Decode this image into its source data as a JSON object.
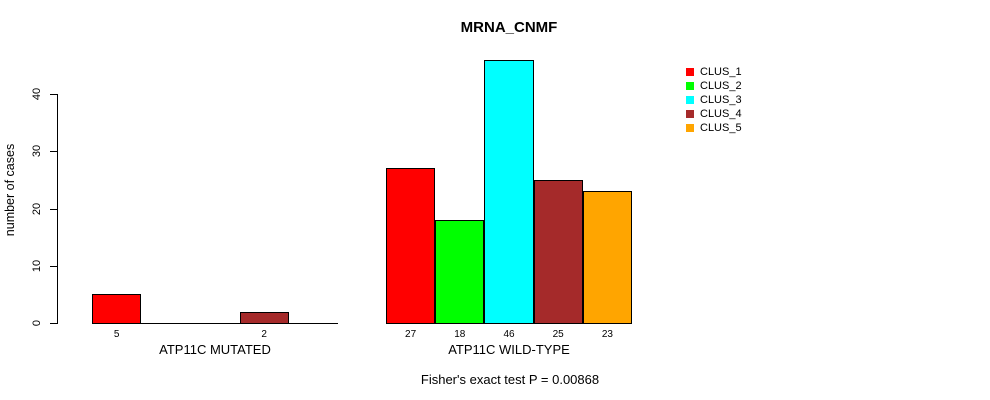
{
  "chart_data": {
    "type": "bar",
    "title": "MRNA_CNMF",
    "ylabel": "number of cases",
    "ylim": [
      0,
      46
    ],
    "yticks": [
      0,
      10,
      20,
      30,
      40
    ],
    "grid": false,
    "legend_position": "right",
    "legend": [
      {
        "name": "CLUS_1",
        "color": "#ff0000"
      },
      {
        "name": "CLUS_2",
        "color": "#00ff00"
      },
      {
        "name": "CLUS_3",
        "color": "#00ffff"
      },
      {
        "name": "CLUS_4",
        "color": "#a52a2a"
      },
      {
        "name": "CLUS_5",
        "color": "#ffa500"
      }
    ],
    "groups": [
      {
        "label": "ATP11C MUTATED",
        "values": [
          5,
          0,
          0,
          2,
          0
        ]
      },
      {
        "label": "ATP11C WILD-TYPE",
        "values": [
          27,
          18,
          46,
          25,
          23
        ]
      }
    ],
    "footnote": "Fisher's exact test P = 0.00868"
  }
}
